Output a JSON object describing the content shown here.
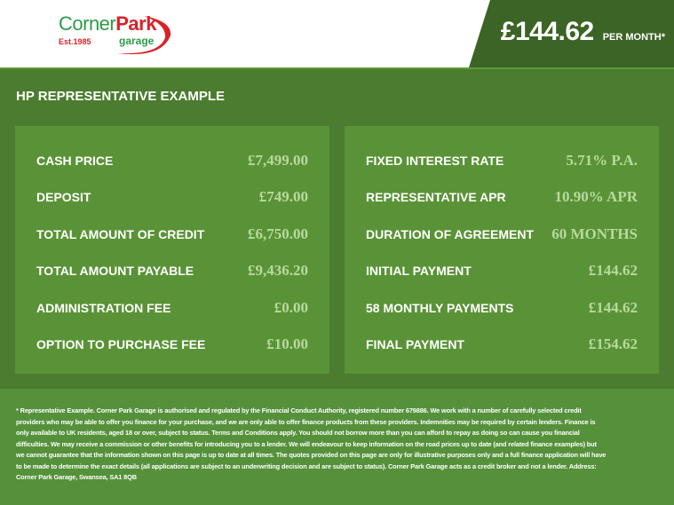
{
  "header": {
    "logo": {
      "name_part1": "Corner",
      "name_part2": "Park",
      "subtitle": "garage",
      "established": "Est.1985"
    },
    "price": "£144.62",
    "per_month": "PER MONTH*"
  },
  "main": {
    "title": "HP REPRESENTATIVE EXAMPLE",
    "left": [
      {
        "label": "CASH PRICE",
        "value": "£7,499.00"
      },
      {
        "label": "DEPOSIT",
        "value": "£749.00"
      },
      {
        "label": "TOTAL AMOUNT OF CREDIT",
        "value": "£6,750.00"
      },
      {
        "label": "TOTAL AMOUNT PAYABLE",
        "value": "£9,436.20"
      },
      {
        "label": "ADMINISTRATION FEE",
        "value": "£0.00"
      },
      {
        "label": "OPTION TO PURCHASE FEE",
        "value": "£10.00"
      }
    ],
    "right": [
      {
        "label": "FIXED INTEREST RATE",
        "value": "5.71% P.A."
      },
      {
        "label": "REPRESENTATIVE APR",
        "value": "10.90% APR"
      },
      {
        "label": "DURATION OF AGREEMENT",
        "value": "60 MONTHS"
      },
      {
        "label": "INITIAL PAYMENT",
        "value": "£144.62"
      },
      {
        "label": "58 MONTHLY PAYMENTS",
        "value": "£144.62"
      },
      {
        "label": "FINAL PAYMENT",
        "value": "£154.62"
      }
    ]
  },
  "footer": {
    "disclaimer": "* Representative Example. Corner Park Garage is authorised and regulated by the Financial Conduct Authority, registered number 679886. We work with a number of carefully selected credit providers who may be able to offer you finance for your purchase, and we are only able to offer finance products from these providers. Indemnities may be required by certain lenders. Finance is only available to UK residents, aged 18 or over, subject to status. Terms and Conditions apply. You should not borrow more than you can afford to repay as doing so can cause you financial difficulties. We may receive a commission or other benefits for introducing you to a lender. We will endeavour to keep information on the road prices up to date (and related finance examples) but we cannot guarantee that the information shown on this page is up to date at all times. The quotes provided on this page are only for illustrative purposes only and a full finance application will have to be made to determine the exact details (all applications are subject to an underwriting decision and are subject to status). Corner Park Garage acts as a credit broker and not a lender. Address: Corner Park Garage, Swansea, SA1 8QB"
  },
  "colors": {
    "dark_green": "#3c6426",
    "main_green": "#4b7c2f",
    "panel_green": "#5a9337",
    "value_green": "#b8d99e",
    "logo_red": "#d8232a",
    "logo_green": "#2e9a4a"
  }
}
